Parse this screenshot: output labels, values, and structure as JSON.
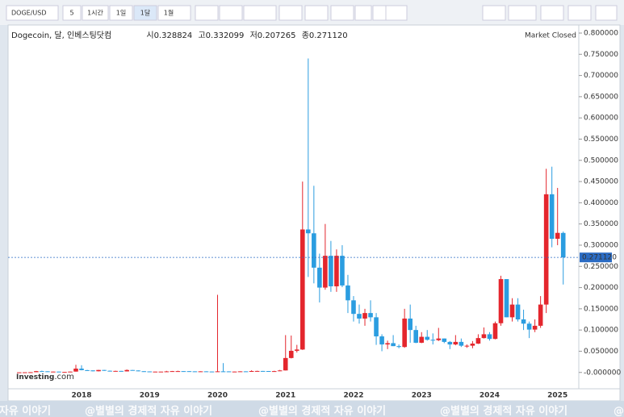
{
  "toolbar": {
    "symbol": "DOGE/USD",
    "buttons": [
      "5",
      "1시간",
      "1일",
      "1달",
      "1월"
    ]
  },
  "chart_data": {
    "type": "candlestick",
    "header": {
      "title": "Dogecoin, 달, 인베스팅닷컴",
      "open_label": "시",
      "open_text": "0.328824",
      "high_label": "고",
      "high_text": "0.332099",
      "low_label": "저",
      "low_text": "0.207265",
      "close_label": "종",
      "close_text": "0.271120"
    },
    "status": "Market Closed",
    "watermark": [
      "Investing",
      ".com"
    ],
    "overlay_text": "@별별의 경제적 자유 이야기",
    "last_price_label": "0.271120",
    "categories": [
      null,
      null,
      null,
      null,
      null,
      null,
      null,
      null,
      null,
      null,
      null,
      "2018",
      null,
      null,
      null,
      null,
      null,
      null,
      null,
      null,
      null,
      null,
      null,
      "2019",
      null,
      null,
      null,
      null,
      null,
      null,
      null,
      null,
      null,
      null,
      null,
      "2020",
      null,
      null,
      null,
      null,
      null,
      null,
      null,
      null,
      null,
      null,
      null,
      "2021",
      null,
      null,
      null,
      null,
      null,
      null,
      null,
      null,
      null,
      null,
      null,
      "2022",
      null,
      null,
      null,
      null,
      null,
      null,
      null,
      null,
      null,
      null,
      null,
      "2023",
      null,
      null,
      null,
      null,
      null,
      null,
      null,
      null,
      null,
      null,
      null,
      "2024",
      null,
      null,
      null,
      null,
      null,
      null,
      null,
      null,
      null,
      null,
      null,
      "2025",
      null
    ],
    "series": [
      {
        "up_color": "#e4262d",
        "down_color": "#2b9de0",
        "open": [
          0.0002,
          0.0003,
          0.0004,
          0.0006,
          0.0031,
          0.0027,
          0.0018,
          0.002,
          0.001,
          0.0012,
          0.002,
          0.009,
          0.0054,
          0.0048,
          0.0028,
          0.0058,
          0.004,
          0.0025,
          0.0036,
          0.0025,
          0.0057,
          0.0046,
          0.0029,
          0.0024,
          0.0019,
          0.002,
          0.002,
          0.0025,
          0.0031,
          0.0031,
          0.003,
          0.0026,
          0.0025,
          0.0026,
          0.0022,
          0.002,
          0.0026,
          0.0025,
          0.0018,
          0.0021,
          0.0026,
          0.0025,
          0.0033,
          0.0035,
          0.0033,
          0.0026,
          0.0031,
          0.0047,
          0.034,
          0.051,
          0.054,
          0.337,
          0.328,
          0.247,
          0.2,
          0.275,
          0.203,
          0.275,
          0.205,
          0.17,
          0.138,
          0.127,
          0.14,
          0.13,
          0.085,
          0.066,
          0.069,
          0.062,
          0.06,
          0.127,
          0.1,
          0.07,
          0.084,
          0.077,
          0.076,
          0.08,
          0.072,
          0.066,
          0.072,
          0.063,
          0.063,
          0.068,
          0.081,
          0.09,
          0.079,
          0.116,
          0.22,
          0.13,
          0.16,
          0.125,
          0.115,
          0.101,
          0.11,
          0.16,
          0.42,
          0.315,
          0.328824
        ],
        "high": [
          0.0003,
          0.0005,
          0.0007,
          0.0036,
          0.0042,
          0.0028,
          0.0022,
          0.002,
          0.0014,
          0.0022,
          0.018,
          0.017,
          0.006,
          0.005,
          0.006,
          0.006,
          0.0045,
          0.004,
          0.0037,
          0.007,
          0.0058,
          0.005,
          0.003,
          0.0025,
          0.002,
          0.0022,
          0.0037,
          0.0035,
          0.004,
          0.0033,
          0.0031,
          0.0026,
          0.0028,
          0.0027,
          0.0022,
          0.183,
          0.022,
          0.0026,
          0.0022,
          0.0027,
          0.0027,
          0.005,
          0.004,
          0.0036,
          0.0034,
          0.0039,
          0.006,
          0.088,
          0.087,
          0.065,
          0.45,
          0.74,
          0.44,
          0.28,
          0.35,
          0.31,
          0.29,
          0.3,
          0.23,
          0.18,
          0.16,
          0.15,
          0.17,
          0.14,
          0.09,
          0.075,
          0.088,
          0.066,
          0.15,
          0.16,
          0.11,
          0.095,
          0.1,
          0.092,
          0.105,
          0.08,
          0.074,
          0.088,
          0.08,
          0.066,
          0.074,
          0.09,
          0.106,
          0.095,
          0.12,
          0.228,
          0.22,
          0.175,
          0.175,
          0.148,
          0.12,
          0.125,
          0.18,
          0.48,
          0.485,
          0.435,
          0.332099
        ],
        "low": [
          0.0002,
          0.0003,
          0.0004,
          0.0006,
          0.002,
          0.0013,
          0.0015,
          0.0009,
          0.0009,
          0.0011,
          0.002,
          0.005,
          0.0035,
          0.0024,
          0.0025,
          0.0035,
          0.0022,
          0.0024,
          0.0019,
          0.0023,
          0.0044,
          0.0027,
          0.0019,
          0.0018,
          0.0017,
          0.0019,
          0.0019,
          0.0024,
          0.0028,
          0.0027,
          0.0025,
          0.0022,
          0.0024,
          0.002,
          0.0019,
          0.002,
          0.0024,
          0.0013,
          0.0017,
          0.002,
          0.0024,
          0.0024,
          0.003,
          0.003,
          0.0025,
          0.0025,
          0.0029,
          0.0046,
          0.033,
          0.047,
          0.053,
          0.225,
          0.21,
          0.165,
          0.195,
          0.19,
          0.19,
          0.201,
          0.14,
          0.12,
          0.115,
          0.11,
          0.12,
          0.065,
          0.05,
          0.055,
          0.062,
          0.057,
          0.058,
          0.07,
          0.069,
          0.069,
          0.075,
          0.066,
          0.074,
          0.069,
          0.055,
          0.064,
          0.06,
          0.058,
          0.057,
          0.067,
          0.08,
          0.075,
          0.078,
          0.11,
          0.13,
          0.12,
          0.12,
          0.1,
          0.081,
          0.095,
          0.105,
          0.14,
          0.295,
          0.3,
          0.207265
        ],
        "close": [
          0.0003,
          0.0004,
          0.0006,
          0.0031,
          0.0027,
          0.0018,
          0.002,
          0.001,
          0.0012,
          0.002,
          0.009,
          0.0054,
          0.0048,
          0.0028,
          0.0058,
          0.004,
          0.0025,
          0.0036,
          0.0025,
          0.0057,
          0.0046,
          0.0029,
          0.0024,
          0.0019,
          0.002,
          0.002,
          0.0025,
          0.0031,
          0.0031,
          0.003,
          0.0026,
          0.0025,
          0.0026,
          0.0022,
          0.002,
          0.0026,
          0.0025,
          0.0018,
          0.0021,
          0.0026,
          0.0025,
          0.0033,
          0.0035,
          0.0033,
          0.0026,
          0.0031,
          0.0047,
          0.034,
          0.051,
          0.054,
          0.337,
          0.328,
          0.247,
          0.2,
          0.275,
          0.203,
          0.275,
          0.205,
          0.17,
          0.138,
          0.127,
          0.14,
          0.13,
          0.085,
          0.066,
          0.069,
          0.062,
          0.06,
          0.127,
          0.1,
          0.07,
          0.084,
          0.077,
          0.076,
          0.08,
          0.072,
          0.066,
          0.072,
          0.063,
          0.063,
          0.068,
          0.081,
          0.09,
          0.079,
          0.116,
          0.22,
          0.13,
          0.16,
          0.125,
          0.115,
          0.101,
          0.11,
          0.16,
          0.42,
          0.315,
          0.329,
          0.27112
        ]
      }
    ],
    "ylim": [
      -0.0385,
      0.819
    ],
    "yticks": [
      {
        "value": 0,
        "label": "-0.000000"
      },
      {
        "value": 0.05,
        "label": "0.050000"
      },
      {
        "value": 0.1,
        "label": "0.100000"
      },
      {
        "value": 0.15,
        "label": "0.150000"
      },
      {
        "value": 0.2,
        "label": "0.200000"
      },
      {
        "value": 0.25,
        "label": "0.250000"
      },
      {
        "value": 0.3,
        "label": "0.300000"
      },
      {
        "value": 0.35,
        "label": "0.350000"
      },
      {
        "value": 0.4,
        "label": "0.400000"
      },
      {
        "value": 0.45,
        "label": "0.450000"
      },
      {
        "value": 0.5,
        "label": "0.500000"
      },
      {
        "value": 0.55,
        "label": "0.550000"
      },
      {
        "value": 0.6,
        "label": "0.600000"
      },
      {
        "value": 0.65,
        "label": "0.650000"
      },
      {
        "value": 0.7,
        "label": "0.700000"
      },
      {
        "value": 0.75,
        "label": "0.750000"
      },
      {
        "value": 0.8,
        "label": "0.800000"
      }
    ],
    "grid": false
  }
}
